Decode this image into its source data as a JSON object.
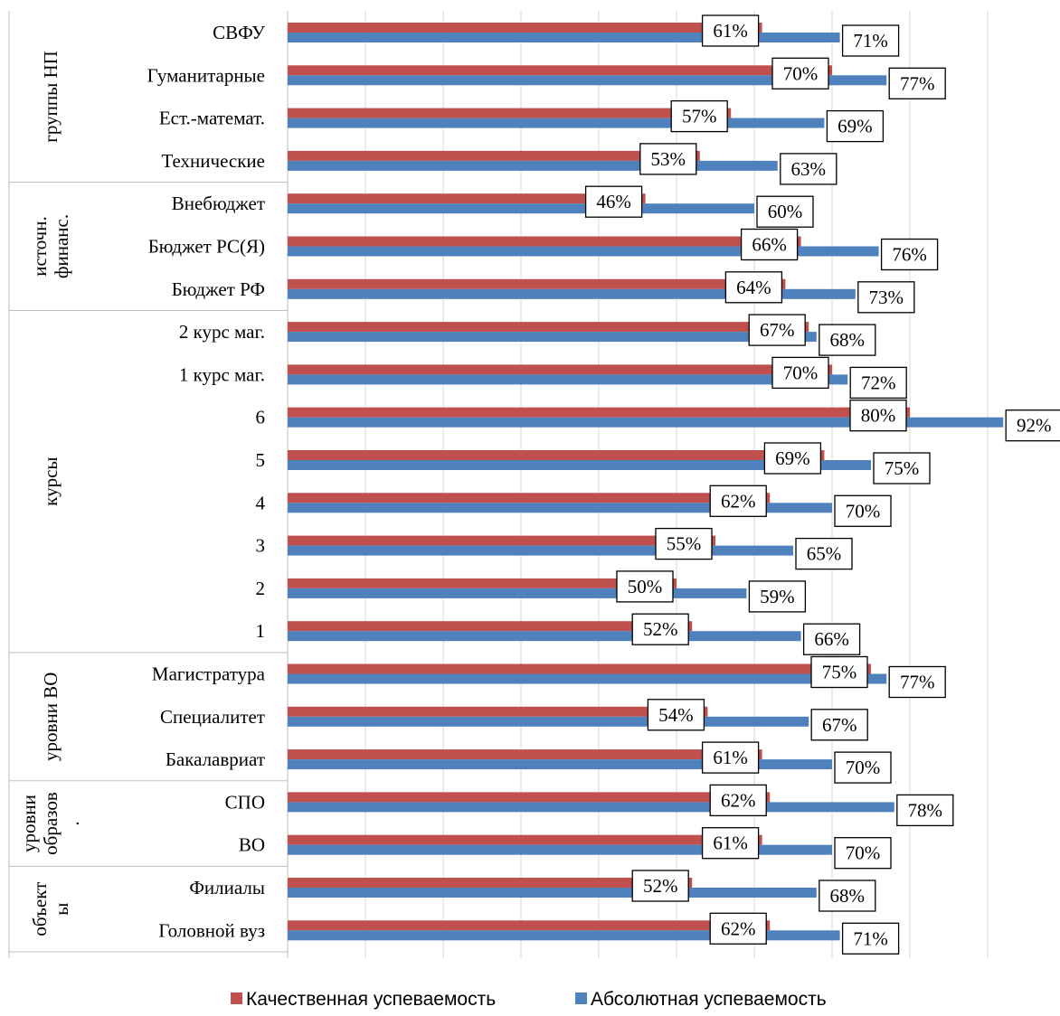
{
  "chart_data": {
    "type": "bar",
    "orientation": "horizontal",
    "title": "",
    "xlabel": "",
    "ylabel": "",
    "xlim": [
      0,
      100
    ],
    "grid": true,
    "legend_position": "bottom",
    "colors": {
      "quality": "#c0504d",
      "absolute": "#4f81bd"
    },
    "categories": [
      "СВФУ",
      "Гуманитарные",
      "Ест.-математ.",
      "Технические",
      "Внебюджет",
      "Бюджет РС(Я)",
      "Бюджет РФ",
      "2 курс маг.",
      "1 курс маг.",
      "6",
      "5",
      "4",
      "3",
      "2",
      "1",
      "Магистратура",
      "Специалитет",
      "Бакалавриат",
      "СПО",
      "ВО",
      "Филиалы",
      "Головной вуз"
    ],
    "groups": [
      {
        "label": "группы НП",
        "lines": [
          "группы НП"
        ],
        "start": 0,
        "count": 4
      },
      {
        "label": "источн. финанс.",
        "lines": [
          "источн.",
          "финанс."
        ],
        "start": 4,
        "count": 3
      },
      {
        "label": "курсы",
        "lines": [
          "курсы"
        ],
        "start": 7,
        "count": 8
      },
      {
        "label": "уровни ВО",
        "lines": [
          "уровни ВО"
        ],
        "start": 15,
        "count": 3
      },
      {
        "label": "уровни образов.",
        "lines": [
          "уровни",
          "образов",
          "."
        ],
        "start": 18,
        "count": 2
      },
      {
        "label": "объекты",
        "lines": [
          "объект",
          "ы"
        ],
        "start": 20,
        "count": 2
      }
    ],
    "series": [
      {
        "name": "Качественная успеваемость",
        "values": [
          61,
          70,
          57,
          53,
          46,
          66,
          64,
          67,
          70,
          80,
          69,
          62,
          55,
          50,
          52,
          75,
          54,
          61,
          62,
          61,
          52,
          62
        ]
      },
      {
        "name": "Абсолютная успеваемость",
        "values": [
          71,
          77,
          69,
          63,
          60,
          76,
          73,
          68,
          72,
          92,
          75,
          70,
          65,
          59,
          66,
          77,
          67,
          70,
          78,
          70,
          68,
          71
        ]
      }
    ],
    "value_suffix": "%"
  }
}
